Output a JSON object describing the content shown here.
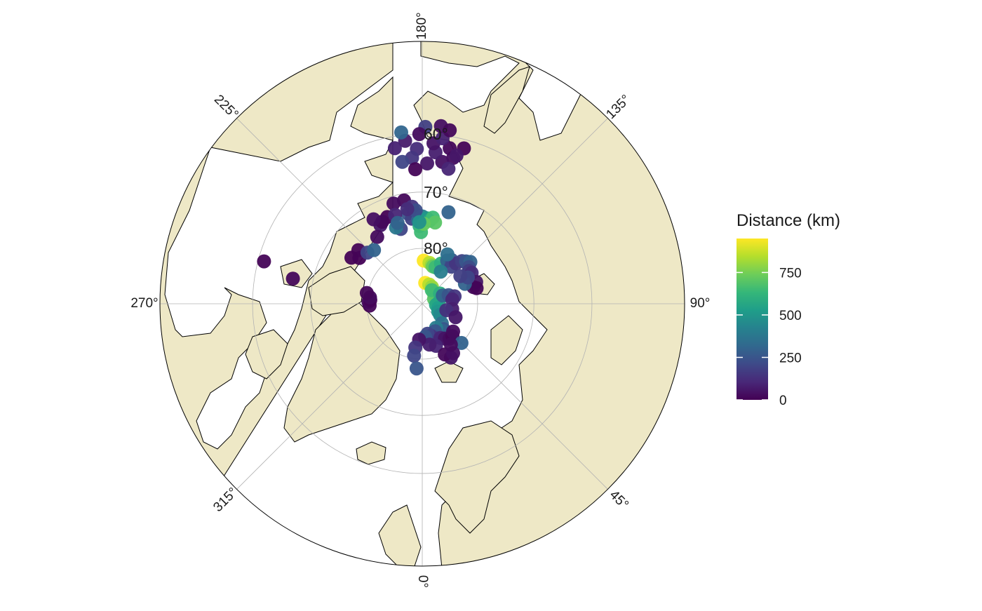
{
  "legend": {
    "title": "Distance (km)",
    "ticks": [
      {
        "value": 0,
        "label": "0"
      },
      {
        "value": 250,
        "label": "250"
      },
      {
        "value": 500,
        "label": "500"
      },
      {
        "value": 750,
        "label": "750"
      }
    ],
    "range": [
      0,
      950
    ],
    "colors": [
      "#440154",
      "#482878",
      "#3E4A89",
      "#31688E",
      "#26828E",
      "#1F9E89",
      "#35B779",
      "#6DCD59",
      "#B4DE2C",
      "#FDE725"
    ]
  },
  "map": {
    "projection": "north polar stereographic",
    "land_color": "#EEE8C6",
    "ocean_color": "#FFFFFF",
    "longitude_labels": [
      {
        "lon": 180,
        "label": "180°"
      },
      {
        "lon": 135,
        "label": "135°"
      },
      {
        "lon": 90,
        "label": "90°"
      },
      {
        "lon": 45,
        "label": "45°"
      },
      {
        "lon": 0,
        "label": "0°"
      },
      {
        "lon": 315,
        "label": "315°"
      },
      {
        "lon": 270,
        "label": "270°"
      },
      {
        "lon": 225,
        "label": "225°"
      }
    ],
    "latitude_labels": [
      {
        "lat": 60,
        "label": "60°"
      },
      {
        "lat": 70,
        "label": "70°"
      },
      {
        "lat": 80,
        "label": "80°"
      }
    ]
  },
  "chart_data": {
    "type": "scatter",
    "title": "",
    "xlabel": "",
    "ylabel": "",
    "color_variable": "Distance (km)",
    "points": [
      {
        "lon": 168,
        "lat": 63.5,
        "d": 30
      },
      {
        "lon": 170,
        "lat": 62.0,
        "d": 20
      },
      {
        "lon": 172,
        "lat": 64.5,
        "d": 40
      },
      {
        "lon": 175,
        "lat": 63.0,
        "d": 80
      },
      {
        "lon": 176,
        "lat": 61.5,
        "d": 50
      },
      {
        "lon": 178,
        "lat": 65.0,
        "d": 60
      },
      {
        "lon": 173,
        "lat": 60.5,
        "d": 90
      },
      {
        "lon": 169,
        "lat": 65.5,
        "d": 100
      },
      {
        "lon": 165,
        "lat": 61.5,
        "d": 10
      },
      {
        "lon": 182,
        "lat": 62.5,
        "d": 120
      },
      {
        "lon": 184,
        "lat": 64.0,
        "d": 150
      },
      {
        "lon": 186,
        "lat": 61.0,
        "d": 70
      },
      {
        "lon": 179,
        "lat": 58.8,
        "d": 180
      },
      {
        "lon": 174,
        "lat": 58.5,
        "d": 40
      },
      {
        "lon": 188,
        "lat": 64.5,
        "d": 200
      },
      {
        "lon": 190,
        "lat": 62.0,
        "d": 90
      },
      {
        "lon": 187,
        "lat": 59.5,
        "d": 310
      },
      {
        "lon": 181,
        "lat": 60.0,
        "d": 30
      },
      {
        "lon": 171,
        "lat": 59.0,
        "d": 20
      },
      {
        "lon": 167,
        "lat": 63.0,
        "d": 60
      },
      {
        "lon": 183,
        "lat": 66.0,
        "d": 10
      },
      {
        "lon": 190,
        "lat": 71.2,
        "d": 20
      },
      {
        "lon": 196,
        "lat": 71.3,
        "d": 30
      },
      {
        "lon": 189,
        "lat": 73.6,
        "d": 250
      },
      {
        "lon": 185,
        "lat": 73.5,
        "d": 100
      },
      {
        "lon": 187,
        "lat": 74.6,
        "d": 180
      },
      {
        "lon": 183,
        "lat": 75.0,
        "d": 300
      },
      {
        "lon": 180,
        "lat": 74.3,
        "d": 400
      },
      {
        "lon": 177,
        "lat": 74.6,
        "d": 500
      },
      {
        "lon": 175,
        "lat": 75.0,
        "d": 550
      },
      {
        "lon": 173,
        "lat": 74.4,
        "d": 650
      },
      {
        "lon": 171,
        "lat": 75.2,
        "d": 700
      },
      {
        "lon": 186,
        "lat": 72.5,
        "d": 150
      },
      {
        "lon": 184,
        "lat": 73.2,
        "d": 230
      },
      {
        "lon": 182,
        "lat": 76.0,
        "d": 600
      },
      {
        "lon": 181,
        "lat": 77.1,
        "d": 650
      },
      {
        "lon": 179,
        "lat": 75.6,
        "d": 720
      },
      {
        "lon": 182,
        "lat": 75.3,
        "d": 480
      },
      {
        "lon": 202,
        "lat": 73.2,
        "d": 5
      },
      {
        "lon": 197,
        "lat": 73.3,
        "d": 100
      },
      {
        "lon": 189,
        "lat": 72.8,
        "d": 120
      },
      {
        "lon": 164,
        "lat": 72.9,
        "d": 300
      },
      {
        "lon": 208,
        "lat": 74.0,
        "d": 60
      },
      {
        "lon": 206,
        "lat": 73.6,
        "d": 20
      },
      {
        "lon": 210,
        "lat": 72.5,
        "d": 40
      },
      {
        "lon": 214,
        "lat": 75.5,
        "d": 30
      },
      {
        "lon": 196,
        "lat": 76.0,
        "d": 200
      },
      {
        "lon": 199,
        "lat": 75.5,
        "d": 380
      },
      {
        "lon": 197,
        "lat": 74.8,
        "d": 300
      },
      {
        "lon": 178,
        "lat": 82.2,
        "d": 950
      },
      {
        "lon": 170,
        "lat": 82.5,
        "d": 850
      },
      {
        "lon": 166,
        "lat": 82.8,
        "d": 800
      },
      {
        "lon": 164,
        "lat": 83.0,
        "d": 720
      },
      {
        "lon": 160,
        "lat": 83.0,
        "d": 650
      },
      {
        "lon": 155,
        "lat": 82.0,
        "d": 600
      },
      {
        "lon": 150,
        "lat": 81.0,
        "d": 300
      },
      {
        "lon": 146,
        "lat": 80.5,
        "d": 250
      },
      {
        "lon": 142,
        "lat": 81.5,
        "d": 200
      },
      {
        "lon": 140,
        "lat": 80.5,
        "d": 150
      },
      {
        "lon": 137,
        "lat": 79.5,
        "d": 180
      },
      {
        "lon": 134,
        "lat": 79.0,
        "d": 250
      },
      {
        "lon": 131,
        "lat": 78.5,
        "d": 300
      },
      {
        "lon": 128,
        "lat": 79.3,
        "d": 220
      },
      {
        "lon": 125,
        "lat": 79.7,
        "d": 160
      },
      {
        "lon": 122,
        "lat": 79.5,
        "d": 120
      },
      {
        "lon": 112,
        "lat": 79.5,
        "d": 60
      },
      {
        "lon": 108,
        "lat": 80.3,
        "d": 30
      },
      {
        "lon": 106,
        "lat": 79.8,
        "d": 10
      },
      {
        "lon": 150,
        "lat": 83.3,
        "d": 400
      },
      {
        "lon": 115,
        "lat": 81.5,
        "d": 300
      },
      {
        "lon": 120,
        "lat": 80.5,
        "d": 200
      },
      {
        "lon": 126,
        "lat": 81.5,
        "d": 180
      },
      {
        "lon": 153,
        "lat": 80.0,
        "d": 350
      },
      {
        "lon": 172,
        "lat": 86.2,
        "d": 950
      },
      {
        "lon": 160,
        "lat": 86.3,
        "d": 850
      },
      {
        "lon": 150,
        "lat": 86.5,
        "d": 800
      },
      {
        "lon": 132,
        "lat": 87.2,
        "d": 750
      },
      {
        "lon": 112,
        "lat": 87.7,
        "d": 700
      },
      {
        "lon": 145,
        "lat": 87.0,
        "d": 650
      },
      {
        "lon": 120,
        "lat": 86.3,
        "d": 600
      },
      {
        "lon": 95,
        "lat": 87.0,
        "d": 580
      },
      {
        "lon": 85,
        "lat": 87.5,
        "d": 560
      },
      {
        "lon": 75,
        "lat": 87.0,
        "d": 530
      },
      {
        "lon": 64,
        "lat": 86.8,
        "d": 500
      },
      {
        "lon": 58,
        "lat": 86.2,
        "d": 450
      },
      {
        "lon": 112,
        "lat": 86.0,
        "d": 300
      },
      {
        "lon": 108,
        "lat": 85.0,
        "d": 250
      },
      {
        "lon": 103,
        "lat": 84.0,
        "d": 150
      },
      {
        "lon": 98,
        "lat": 84.5,
        "d": 100
      },
      {
        "lon": 80,
        "lat": 84.5,
        "d": 80
      },
      {
        "lon": 75,
        "lat": 85.5,
        "d": 130
      },
      {
        "lon": 68,
        "lat": 83.5,
        "d": 60
      },
      {
        "lon": 45,
        "lat": 85.0,
        "d": 350
      },
      {
        "lon": 40,
        "lat": 84.0,
        "d": 250
      },
      {
        "lon": 36,
        "lat": 84.0,
        "d": 300
      },
      {
        "lon": 30,
        "lat": 85.0,
        "d": 400
      },
      {
        "lon": 25,
        "lat": 84.5,
        "d": 250
      },
      {
        "lon": 20,
        "lat": 83.5,
        "d": 200
      },
      {
        "lon": 15,
        "lat": 84.0,
        "d": 150
      },
      {
        "lon": 10,
        "lat": 84.5,
        "d": 200
      },
      {
        "lon": 5,
        "lat": 84.0,
        "d": 250
      },
      {
        "lon": 28,
        "lat": 83.0,
        "d": 100
      },
      {
        "lon": 33,
        "lat": 82.5,
        "d": 50
      },
      {
        "lon": 38,
        "lat": 82.0,
        "d": 30
      },
      {
        "lon": 43,
        "lat": 82.0,
        "d": 10
      },
      {
        "lon": 48,
        "lat": 82.5,
        "d": 30
      },
      {
        "lon": 18,
        "lat": 82.0,
        "d": 100
      },
      {
        "lon": 10,
        "lat": 82.5,
        "d": 80
      },
      {
        "lon": 355,
        "lat": 83.5,
        "d": 50
      },
      {
        "lon": 351,
        "lat": 82.0,
        "d": 150
      },
      {
        "lon": 351,
        "lat": 80.5,
        "d": 200
      },
      {
        "lon": 355,
        "lat": 78.3,
        "d": 250
      },
      {
        "lon": 45,
        "lat": 80.0,
        "d": 300
      },
      {
        "lon": 28,
        "lat": 79.0,
        "d": 60
      },
      {
        "lon": 24,
        "lat": 80.0,
        "d": 20
      },
      {
        "lon": 32,
        "lat": 79.5,
        "d": 40
      },
      {
        "lon": 35,
        "lat": 81.0,
        "d": 30
      },
      {
        "lon": 272,
        "lat": 80.5,
        "d": 10
      },
      {
        "lon": 268,
        "lat": 80.3,
        "d": 20
      },
      {
        "lon": 266,
        "lat": 80.6,
        "d": 5
      },
      {
        "lon": 263,
        "lat": 80.5,
        "d": 30
      },
      {
        "lon": 259,
        "lat": 79.8,
        "d": 15
      },
      {
        "lon": 259,
        "lat": 66.5,
        "d": 20
      },
      {
        "lon": 255,
        "lat": 61.0,
        "d": 10
      },
      {
        "lon": 234,
        "lat": 76.0,
        "d": 5
      },
      {
        "lon": 230,
        "lat": 75.0,
        "d": 10
      },
      {
        "lon": 237,
        "lat": 74.8,
        "d": 5
      },
      {
        "lon": 227,
        "lat": 76.5,
        "d": 200
      },
      {
        "lon": 222,
        "lat": 77.0,
        "d": 300
      }
    ]
  }
}
